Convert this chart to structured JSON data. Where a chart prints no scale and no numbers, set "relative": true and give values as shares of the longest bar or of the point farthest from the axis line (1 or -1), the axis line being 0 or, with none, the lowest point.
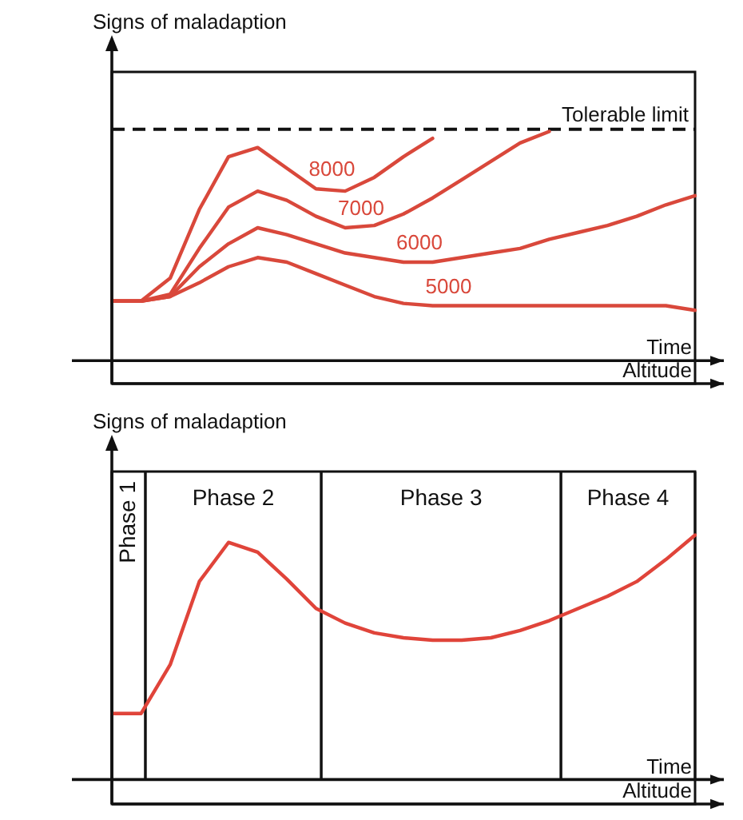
{
  "chart_data": [
    {
      "type": "line",
      "ylabel": "Signs of maladaption",
      "xlabel": "Time",
      "annotations": [
        "Altitude"
      ],
      "relative": true,
      "tick_labels": false,
      "categories": [
        null,
        null,
        null,
        null,
        null,
        null,
        null,
        null,
        null,
        null,
        null,
        null,
        null,
        null,
        null,
        null,
        null,
        null,
        null,
        null,
        null
      ],
      "series": [
        {
          "name": "8000",
          "color": "#d9483b",
          "values": [
            0.26,
            0.26,
            0.36,
            0.66,
            0.89,
            0.93,
            0.84,
            0.75,
            0.74,
            0.8,
            0.89,
            0.97,
            null,
            null,
            null,
            null,
            null,
            null,
            null,
            null,
            null
          ]
        },
        {
          "name": "7000",
          "color": "#d9483b",
          "values": [
            0.26,
            0.26,
            0.29,
            0.49,
            0.67,
            0.74,
            0.7,
            0.63,
            0.58,
            0.59,
            0.64,
            0.71,
            0.79,
            0.87,
            0.95,
            1.0,
            null,
            null,
            null,
            null,
            null
          ]
        },
        {
          "name": "6000",
          "color": "#d9483b",
          "values": [
            0.26,
            0.26,
            0.28,
            0.41,
            0.51,
            0.58,
            0.55,
            0.51,
            0.47,
            0.45,
            0.43,
            0.43,
            0.45,
            0.47,
            0.49,
            0.53,
            0.56,
            0.59,
            0.63,
            0.68,
            0.72
          ]
        },
        {
          "name": "5000",
          "color": "#d9483b",
          "values": [
            0.26,
            0.26,
            0.28,
            0.34,
            0.41,
            0.45,
            0.43,
            0.38,
            0.33,
            0.28,
            0.25,
            0.24,
            0.24,
            0.24,
            0.24,
            0.24,
            0.24,
            0.24,
            0.24,
            0.24,
            0.22
          ]
        }
      ],
      "ref_lines": [
        {
          "axis": "y",
          "value": 1.01,
          "label": "Tolerable limit",
          "color": "#111111",
          "line_style": "dashed"
        }
      ]
    },
    {
      "type": "line",
      "ylabel": "Signs of maladaption",
      "xlabel": "Time",
      "annotations": [
        "Altitude",
        "Phase 1",
        "Phase 2",
        "Phase 3",
        "Phase 4"
      ],
      "relative": true,
      "tick_labels": false,
      "categories": [
        null,
        null,
        null,
        null,
        null,
        null,
        null,
        null,
        null,
        null,
        null,
        null,
        null,
        null,
        null,
        null,
        null,
        null,
        null,
        null,
        null
      ],
      "series": [
        {
          "color": "#e0443a",
          "values": [
            0.27,
            0.27,
            0.47,
            0.81,
            0.97,
            0.93,
            0.82,
            0.7,
            0.64,
            0.6,
            0.58,
            0.57,
            0.57,
            0.58,
            0.61,
            0.65,
            0.7,
            0.75,
            0.81,
            0.9,
            1.0
          ]
        }
      ]
    }
  ]
}
